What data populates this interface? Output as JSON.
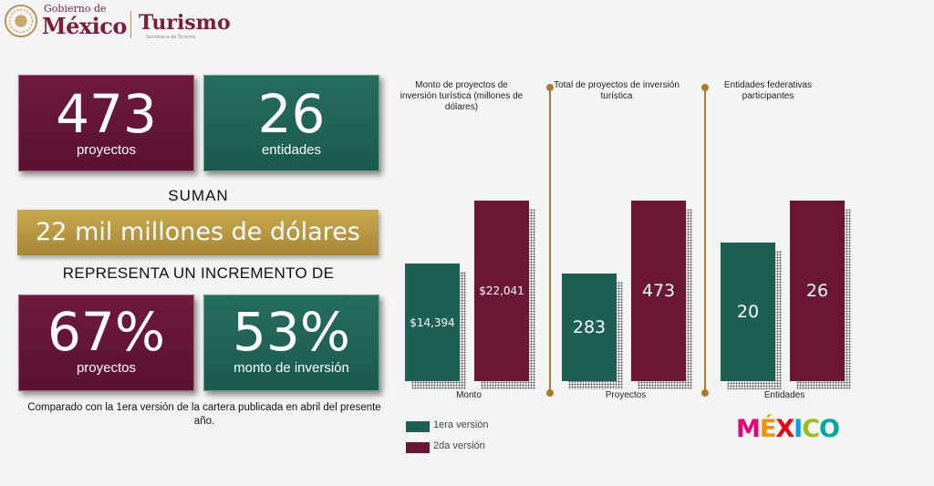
{
  "header": {
    "gob_small": "Gobierno de",
    "gob_big": "México",
    "turismo": "Turismo",
    "turismo_sub": "Secretaría de Turismo"
  },
  "stats": {
    "proyectos_value": "473",
    "proyectos_label": "proyectos",
    "entidades_value": "26",
    "entidades_label": "entidades",
    "suman": "SUMAN",
    "total": "22 mil millones de dólares",
    "incremento": "REPRESENTA UN INCREMENTO DE",
    "inc_proyectos_value": "67%",
    "inc_proyectos_label": "proyectos",
    "inc_monto_value": "53%",
    "inc_monto_label": "monto de inversión",
    "note": "Comparado con la 1era versión de la cartera publicada en abril del presente año."
  },
  "colors": {
    "first_version": "#1d5f52",
    "second_version": "#6a1735",
    "banner": "#bd9a45",
    "divider": "#a97b2f"
  },
  "chart_data": [
    {
      "type": "bar",
      "title": "Monto de proyectos de inversión turística (millones de dólares)",
      "xlabel": "Monto",
      "categories": [
        "Monto"
      ],
      "series": [
        {
          "name": "1era versión",
          "values": [
            14394
          ],
          "label": "$14,394"
        },
        {
          "name": "2da versión",
          "values": [
            22041
          ],
          "label": "$22,041"
        }
      ]
    },
    {
      "type": "bar",
      "title": "Total de proyectos de inversión turística",
      "xlabel": "Proyectos",
      "categories": [
        "Proyectos"
      ],
      "series": [
        {
          "name": "1era versión",
          "values": [
            283
          ],
          "label": "283"
        },
        {
          "name": "2da versión",
          "values": [
            473
          ],
          "label": "473"
        }
      ]
    },
    {
      "type": "bar",
      "title": "Entidades federativas participantes",
      "xlabel": "Entidades",
      "categories": [
        "Entidades"
      ],
      "series": [
        {
          "name": "1era versión",
          "values": [
            20
          ],
          "label": "20"
        },
        {
          "name": "2da versión",
          "values": [
            26
          ],
          "label": "26"
        }
      ]
    }
  ],
  "legend": {
    "first": "1era versión",
    "second": "2da versión"
  },
  "mexico_logo": {
    "letters": [
      "M",
      "É",
      "X",
      "I",
      "C",
      "O"
    ],
    "colors": [
      "#e6007e",
      "#f39200",
      "#e30613",
      "#009fe3",
      "#95c11f",
      "#00a99d"
    ]
  }
}
